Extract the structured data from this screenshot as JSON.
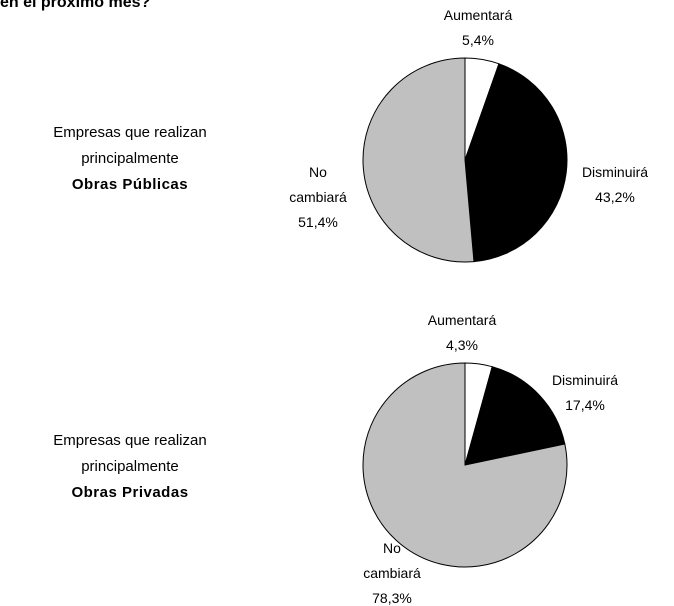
{
  "header": {
    "title": "en el próximo mes?"
  },
  "chart_data": [
    {
      "type": "pie",
      "annotations": [
        "Empresas que realizan",
        "principalmente",
        "Obras Públicas"
      ],
      "categories": [
        "Aumentará",
        "Disminuirá",
        "No cambiará"
      ],
      "values": [
        5.4,
        43.2,
        51.4
      ],
      "value_labels": [
        "5,4%",
        "43,2%",
        "51,4%"
      ],
      "colors": [
        "#ffffff",
        "#000000",
        "#c0c0c0"
      ]
    },
    {
      "type": "pie",
      "annotations": [
        "Empresas que realizan",
        "principalmente",
        "Obras Privadas"
      ],
      "categories": [
        "Aumentará",
        "Disminuirá",
        "No cambiará"
      ],
      "values": [
        4.3,
        17.4,
        78.3
      ],
      "value_labels": [
        "4,3%",
        "17,4%",
        "78,3%"
      ],
      "colors": [
        "#ffffff",
        "#000000",
        "#c0c0c0"
      ]
    }
  ]
}
